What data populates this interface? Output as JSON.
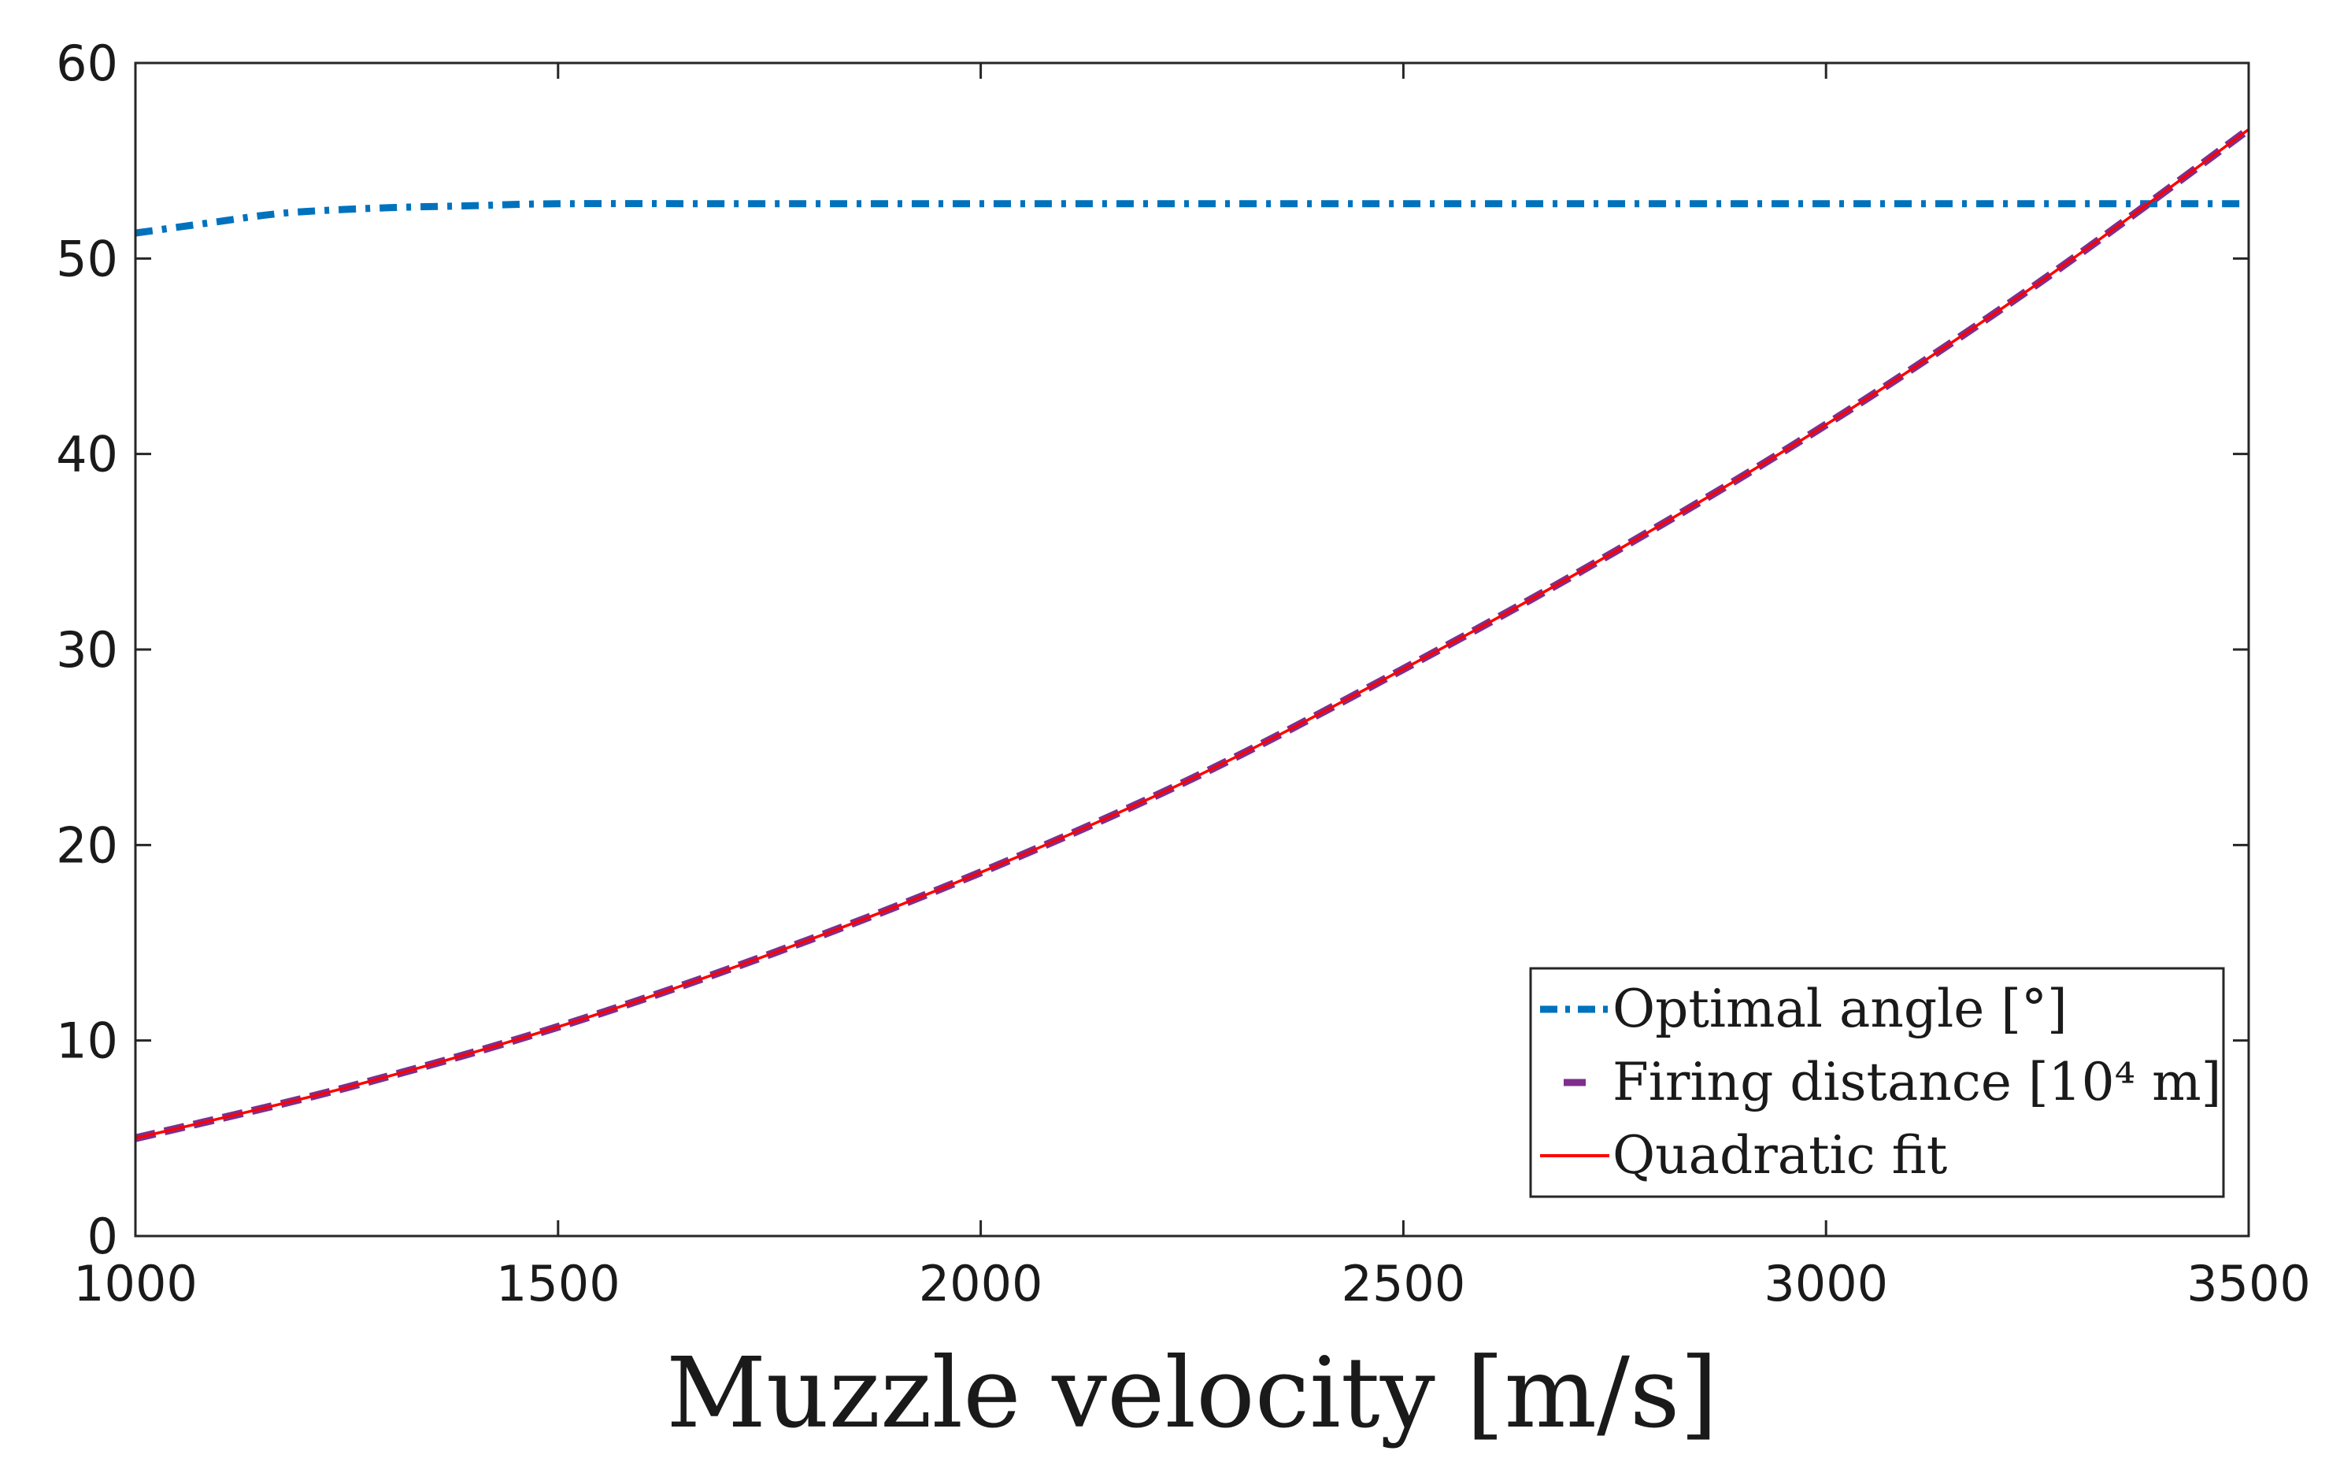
{
  "chart_data": {
    "type": "line",
    "xlabel": "Muzzle velocity [m/s]",
    "ylabel": "",
    "title": "",
    "xlim": [
      1000,
      3500
    ],
    "ylim": [
      0,
      60
    ],
    "xticks": [
      "1000",
      "1500",
      "2000",
      "2500",
      "3000",
      "3500"
    ],
    "yticks": [
      "0",
      "10",
      "20",
      "30",
      "40",
      "50",
      "60"
    ],
    "grid": false,
    "legend_position": "bottom-right",
    "series": [
      {
        "name": "Optimal angle [°]",
        "style": "dash-dot",
        "color": "#0072BD",
        "x": [
          1000,
          1050,
          1100,
          1150,
          1200,
          1300,
          1400,
          1500,
          1750,
          2000,
          2500,
          3000,
          3500
        ],
        "y": [
          51.3,
          51.6,
          51.9,
          52.2,
          52.4,
          52.6,
          52.7,
          52.8,
          52.8,
          52.8,
          52.8,
          52.8,
          52.8
        ]
      },
      {
        "name": "Firing distance [10⁴ m]",
        "style": "dashed",
        "color": "#7E2F8E",
        "x": [
          1000,
          1250,
          1500,
          1750,
          2000,
          2250,
          2500,
          2750,
          3000,
          3250,
          3500
        ],
        "y": [
          5.0,
          7.6,
          10.7,
          14.4,
          18.6,
          23.4,
          29.0,
          35.0,
          41.5,
          48.7,
          56.6
        ]
      },
      {
        "name": "Quadratic fit",
        "style": "solid",
        "color": "#FF0000",
        "x": [
          1000,
          1250,
          1500,
          1750,
          2000,
          2250,
          2500,
          2750,
          3000,
          3250,
          3500
        ],
        "y": [
          5.0,
          7.6,
          10.7,
          14.4,
          18.6,
          23.4,
          29.0,
          35.0,
          41.5,
          48.7,
          56.6
        ]
      }
    ],
    "legend_entries": [
      {
        "label": "Optimal angle [°]",
        "color": "#0072BD",
        "style": "dash-dot"
      },
      {
        "label": "Firing distance [10⁴ m]",
        "color": "#7E2F8E",
        "style": "dashed"
      },
      {
        "label": "Quadratic fit",
        "color": "#FF0000",
        "style": "solid"
      }
    ]
  }
}
